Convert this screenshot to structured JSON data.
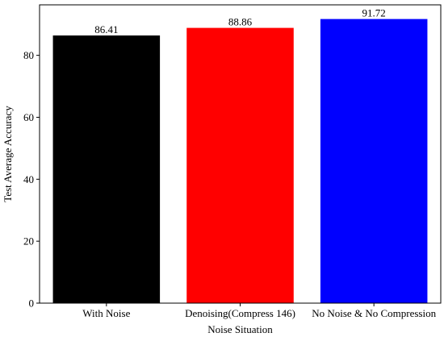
{
  "chart_data": {
    "type": "bar",
    "categories": [
      "With Noise",
      "Denoising(Compress 146)",
      "No Noise & No Compression"
    ],
    "values": [
      86.41,
      88.86,
      91.72
    ],
    "value_labels": [
      "86.41",
      "88.86",
      "91.72"
    ],
    "colors": [
      "#000000",
      "#ff0000",
      "#0000ff"
    ],
    "title": "",
    "xlabel": "Noise Situation",
    "ylabel": "Test Average Accuracy",
    "ylim": [
      0,
      96.3
    ],
    "yticks": [
      0,
      20,
      40,
      60,
      80
    ],
    "grid": false,
    "legend": "none"
  }
}
